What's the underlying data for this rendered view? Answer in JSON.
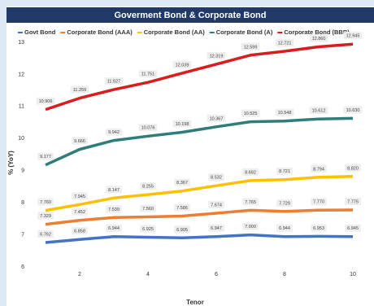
{
  "chart_data": {
    "type": "line",
    "title": "Goverment Bond & Corporate Bond",
    "x_label": "Tenor",
    "y_label": "% (YoY)",
    "x": [
      1,
      2,
      3,
      4,
      5,
      6,
      7,
      8,
      9,
      10
    ],
    "xlim": [
      0.5,
      10.5
    ],
    "xticks": [
      2,
      4,
      6,
      8,
      10
    ],
    "ylim": [
      6,
      13
    ],
    "yticks": [
      6,
      7,
      8,
      9,
      10,
      11,
      12,
      13
    ],
    "series": [
      {
        "name": "Govt Bond",
        "color": "#4472c4",
        "values": [
          6.762,
          6.858,
          6.944,
          6.925,
          6.905,
          6.947,
          7.0,
          6.944,
          6.953,
          6.945
        ],
        "value_labels": [
          "6.762",
          "6.858",
          "6.944",
          "6.925",
          "6.905",
          "6.947",
          "7.000",
          "6.944",
          "6.953",
          "6.945"
        ]
      },
      {
        "name": "Corporate Bond (AAA)",
        "color": "#ed7d31",
        "values": [
          7.329,
          7.452,
          7.539,
          7.56,
          7.586,
          7.674,
          7.765,
          7.729,
          7.77,
          7.775
        ],
        "value_labels": [
          "7.329",
          "7.452",
          "7.539",
          "7.560",
          "7.586",
          "7.674",
          "7.765",
          "7.729",
          "7.770",
          "7.775"
        ]
      },
      {
        "name": "Corporate Bond (AA)",
        "color": "#ffc000",
        "values": [
          7.76,
          7.945,
          8.147,
          8.255,
          8.367,
          8.532,
          8.692,
          8.721,
          8.794,
          8.82
        ],
        "value_labels": [
          "7.760",
          "7.945",
          "8.147",
          "8.255",
          "8.367",
          "8.532",
          "8.692",
          "8.721",
          "8.794",
          "8.820"
        ]
      },
      {
        "name": "Corporate Bond (A)",
        "color": "#2e7d7a",
        "values": [
          9.177,
          9.666,
          9.942,
          10.076,
          10.198,
          10.367,
          10.525,
          10.548,
          10.612,
          10.63
        ],
        "value_labels": [
          "9.177",
          "9.666",
          "9.942",
          "10.076",
          "10.198",
          "10.367",
          "10.525",
          "10.548",
          "10.612",
          "10.630"
        ]
      },
      {
        "name": "Corporate Bond (BBB)",
        "color": "#d91c1c",
        "values": [
          10.906,
          11.259,
          11.527,
          11.751,
          12.039,
          12.319,
          12.599,
          12.721,
          12.86,
          12.945
        ],
        "value_labels": [
          "10.906",
          "11.259",
          "11.527",
          "11.751",
          "12.039",
          "12.319",
          "12.599",
          "12.721",
          "12.860",
          "12.945"
        ]
      }
    ]
  }
}
